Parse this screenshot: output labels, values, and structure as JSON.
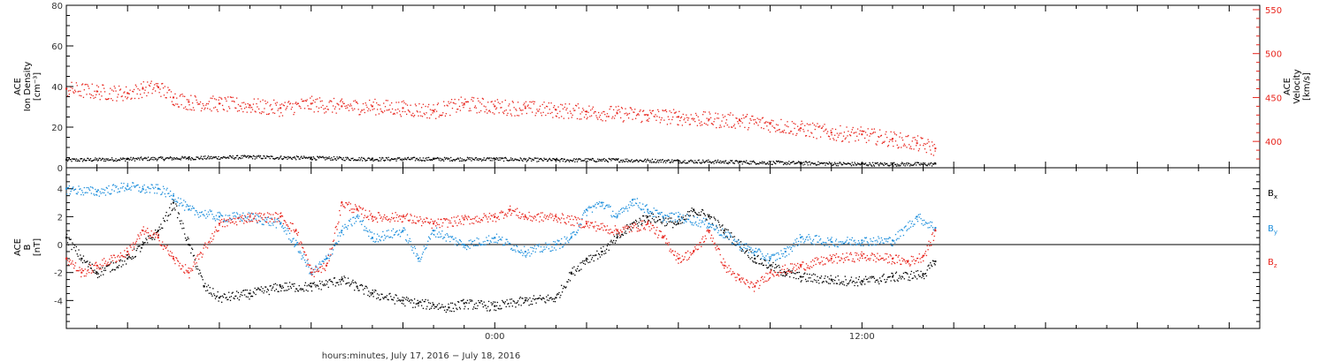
{
  "chart_data": [
    {
      "type": "scatter",
      "panel": "top",
      "ylabel_lines": [
        "ACE",
        "Ion Density",
        "[cm⁻³]"
      ],
      "y2label_lines": [
        "ACE",
        "Velocity",
        "[km/s]"
      ],
      "ylim": [
        0,
        80
      ],
      "yticks": [
        0,
        20,
        40,
        60,
        80
      ],
      "y2lim": [
        370,
        555
      ],
      "y2ticks": [
        400,
        450,
        500,
        550
      ],
      "xlim_hours": [
        -14,
        25
      ],
      "series": [
        {
          "name": "",
          "axis": "left",
          "color": "#000000",
          "x_hours": [
            -14,
            -12,
            -10,
            -8,
            -6,
            -4,
            -2,
            0,
            2,
            4,
            6,
            8,
            10,
            12,
            13,
            14.4
          ],
          "values": [
            4,
            4.5,
            5,
            5.5,
            5,
            4.5,
            4.5,
            4.5,
            4,
            4,
            3.5,
            3,
            2.5,
            2,
            2,
            2
          ]
        },
        {
          "name": "",
          "axis": "right",
          "color": "#e8241c",
          "x_hours": [
            -14,
            -13,
            -12,
            -11.5,
            -11,
            -10.5,
            -10,
            -9,
            -8,
            -7,
            -6,
            -5,
            -4,
            -3,
            -2,
            -1,
            0,
            1,
            2,
            3,
            4,
            5,
            6,
            7,
            8,
            9,
            10,
            11,
            12,
            13,
            13.8,
            14.4
          ],
          "values": [
            460,
            457,
            455,
            460,
            462,
            450,
            445,
            443,
            441,
            438,
            443,
            440,
            440,
            438,
            435,
            443,
            440,
            438,
            436,
            434,
            432,
            430,
            428,
            425,
            424,
            420,
            415,
            410,
            408,
            403,
            398,
            392
          ]
        }
      ]
    },
    {
      "type": "scatter",
      "panel": "bottom",
      "ylabel_lines": [
        "ACE",
        "B",
        "[nT]"
      ],
      "ylim": [
        -6,
        5.5
      ],
      "yticks": [
        -4,
        -2,
        0,
        2,
        4
      ],
      "xlim_hours": [
        -14,
        25
      ],
      "xticks": [
        {
          "hour": 0,
          "label": "0:00"
        },
        {
          "hour": 12,
          "label": "12:00"
        }
      ],
      "xlabel": "hours:minutes, July 17, 2016 − July 18, 2016",
      "zero_line": true,
      "series": [
        {
          "name": "B",
          "sub": "x",
          "color": "#000000",
          "x_hours": [
            -14,
            -13.5,
            -13,
            -12,
            -11.5,
            -11,
            -10.5,
            -10,
            -9.5,
            -9,
            -8,
            -7,
            -6,
            -5,
            -4.5,
            -4,
            -3,
            -2.5,
            -2,
            -1.5,
            -1,
            0,
            1,
            2,
            2.5,
            3,
            3.5,
            4,
            4.5,
            5,
            6,
            6.5,
            7,
            7.5,
            8,
            8.5,
            9,
            9.5,
            10,
            11,
            12,
            13,
            14,
            14.4
          ],
          "values": [
            0.5,
            -1,
            -2,
            -1,
            0,
            1,
            3,
            0,
            -3,
            -3.8,
            -3.5,
            -3,
            -3,
            -2.5,
            -3,
            -3.5,
            -4,
            -4.2,
            -4.3,
            -4.5,
            -4.2,
            -4.4,
            -4,
            -3.8,
            -2,
            -1,
            -0.5,
            0.5,
            1.5,
            2,
            1.5,
            2.5,
            2,
            1,
            0,
            -1,
            -1.5,
            -2,
            -2.3,
            -2.5,
            -2.6,
            -2.3,
            -2.1,
            -1.2
          ]
        },
        {
          "name": "B",
          "sub": "y",
          "color": "#1e8fdc",
          "x_hours": [
            -14,
            -13,
            -12,
            -11.5,
            -11,
            -10.5,
            -10,
            -9,
            -8,
            -7,
            -6.5,
            -6,
            -5.5,
            -5,
            -4.5,
            -4,
            -3,
            -2.5,
            -2,
            -1,
            0,
            1,
            2,
            2.5,
            3,
            3.5,
            4,
            4.5,
            5,
            5.5,
            6,
            7,
            8,
            8.5,
            9,
            9.5,
            10,
            11,
            12,
            13,
            13.8,
            14.4
          ],
          "values": [
            4,
            3.8,
            4.2,
            4,
            4,
            3.5,
            2.5,
            2,
            2,
            1.5,
            0,
            -2,
            -1,
            1,
            2,
            0.5,
            1,
            -1,
            1,
            0,
            0.5,
            -0.5,
            0,
            0.5,
            2.5,
            3,
            2,
            3.2,
            2.5,
            2,
            2,
            1.5,
            0,
            -0.5,
            -1,
            -0.5,
            0.5,
            0.2,
            0.3,
            0.3,
            2,
            1.2
          ]
        },
        {
          "name": "B",
          "sub": "z",
          "color": "#e8241c",
          "x_hours": [
            -14,
            -13.5,
            -13,
            -12,
            -11.5,
            -11,
            -10.5,
            -10,
            -9,
            -8,
            -7,
            -6.5,
            -6,
            -5.5,
            -5,
            -4.5,
            -4,
            -3,
            -2,
            -1,
            0,
            0.5,
            1,
            2,
            3,
            4,
            5,
            5.5,
            6,
            6.5,
            7,
            7.5,
            8,
            8.5,
            9,
            10,
            11,
            12,
            13,
            13.5,
            14,
            14.4
          ],
          "values": [
            -1,
            -2,
            -1.5,
            -0.5,
            1,
            0.5,
            -1,
            -2,
            1.5,
            2,
            2,
            1,
            -2,
            -1.5,
            3,
            2.5,
            2,
            2,
            1.5,
            1.8,
            2,
            2.5,
            2,
            2,
            1.5,
            1,
            1.5,
            0.5,
            -1,
            -0.5,
            1,
            -1.5,
            -2.5,
            -3,
            -2,
            -1.5,
            -1,
            -0.8,
            -1,
            -1.2,
            -0.8,
            1
          ]
        }
      ]
    }
  ]
}
